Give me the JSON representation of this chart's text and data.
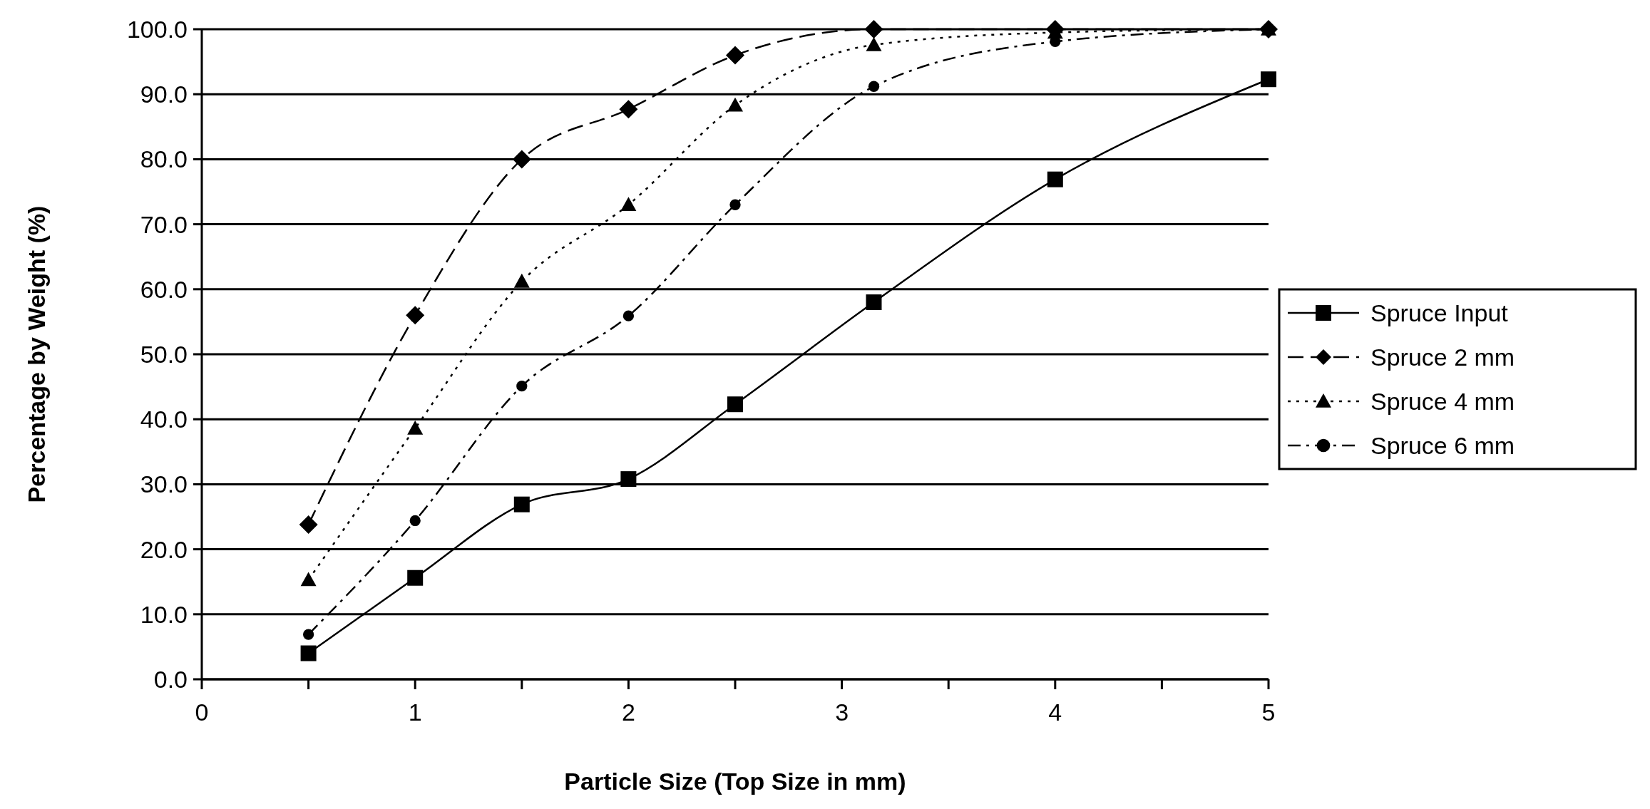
{
  "chart_data": {
    "type": "line",
    "xlabel": "Particle Size (Top Size in mm)",
    "ylabel": "Percentage by Weight (%)",
    "xlim": [
      0,
      5
    ],
    "ylim": [
      0,
      100
    ],
    "xticks": [
      0,
      {
        "value": 0.5,
        "label": null
      },
      1,
      {
        "value": 1.5,
        "label": null
      },
      2,
      {
        "value": 2.5,
        "label": null
      },
      3,
      {
        "value": 3.5,
        "label": null
      },
      4,
      {
        "value": 4.5,
        "label": null
      },
      5
    ],
    "yticks": [
      {
        "value": 0,
        "label": "0.0"
      },
      {
        "value": 10,
        "label": "10.0"
      },
      {
        "value": 20,
        "label": "20.0"
      },
      {
        "value": 30,
        "label": "30.0"
      },
      {
        "value": 40,
        "label": "40.0"
      },
      {
        "value": 50,
        "label": "50.0"
      },
      {
        "value": 60,
        "label": "60.0"
      },
      {
        "value": 70,
        "label": "70.0"
      },
      {
        "value": 80,
        "label": "80.0"
      },
      {
        "value": 90,
        "label": "90.0"
      },
      {
        "value": 100,
        "label": "100.0"
      }
    ],
    "grid": "y",
    "legend": "right",
    "x": [
      0.5,
      1,
      1.5,
      2,
      2.5,
      3.15,
      4,
      5
    ],
    "series": [
      {
        "name": "Spruce Input",
        "color": "#000000",
        "marker": "square",
        "line_style": "solid",
        "values": [
          4.0,
          15.6,
          26.9,
          30.8,
          42.3,
          58.0,
          76.9,
          92.3
        ]
      },
      {
        "name": "Spruce 2 mm",
        "color": "#000000",
        "marker": "diamond",
        "line_style": "dashed",
        "values": [
          23.8,
          56.0,
          80.0,
          87.7,
          96.0,
          100,
          100,
          100
        ]
      },
      {
        "name": "Spruce 4 mm",
        "color": "#000000",
        "marker": "triangle",
        "line_style": "dotted",
        "values": [
          15.3,
          38.6,
          61.2,
          73.0,
          88.3,
          97.6,
          99.5,
          100
        ]
      },
      {
        "name": "Spruce 6 mm",
        "color": "#000000",
        "marker": "circle",
        "line_style": "dashdot",
        "values": [
          6.9,
          24.4,
          45.1,
          55.9,
          73.0,
          91.2,
          98.1,
          100
        ]
      }
    ]
  }
}
